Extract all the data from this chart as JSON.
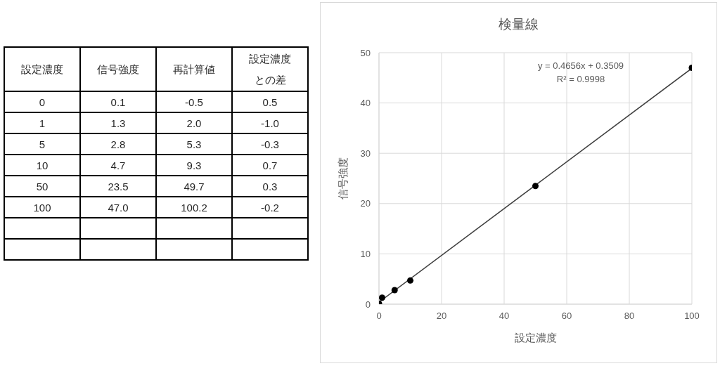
{
  "chart_data": [
    {
      "type": "other",
      "categories": [
        "設定濃度",
        "信号強度",
        "再計算値",
        "設定濃度との差"
      ],
      "cell_labels": [
        [
          "0",
          "0.1",
          "-0.5",
          "0.5"
        ],
        [
          "1",
          "1.3",
          "2.0",
          "-1.0"
        ],
        [
          "5",
          "2.8",
          "5.3",
          "-0.3"
        ],
        [
          "10",
          "4.7",
          "9.3",
          "0.7"
        ],
        [
          "50",
          "23.5",
          "49.7",
          "0.3"
        ],
        [
          "100",
          "47.0",
          "100.2",
          "-0.2"
        ],
        [
          null,
          null,
          null,
          null
        ],
        [
          null,
          null,
          null,
          null
        ]
      ]
    },
    {
      "type": "scatter",
      "title": "検量線",
      "xlabel": "設定濃度",
      "ylabel": "信号強度",
      "x": [
        0,
        1,
        5,
        10,
        50,
        100
      ],
      "series": [
        {
          "type": "scatter",
          "color": "#000000",
          "values": [
            0.1,
            1.3,
            2.8,
            4.7,
            23.5,
            47.0
          ]
        },
        {
          "type": "line",
          "x": [
            0,
            100
          ],
          "values": [
            0.4,
            46.9
          ],
          "color": "#404040",
          "marker": "none"
        }
      ],
      "xlim": [
        0,
        100
      ],
      "xticks": [
        0,
        20,
        40,
        60,
        80,
        100
      ],
      "ylim": [
        0,
        50
      ],
      "yticks": [
        0,
        10,
        20,
        30,
        40,
        50
      ],
      "grid": true,
      "marker": "circle",
      "annotations": [
        "y = 0.4656x + 0.3509",
        "R² = 0.9998"
      ]
    }
  ]
}
